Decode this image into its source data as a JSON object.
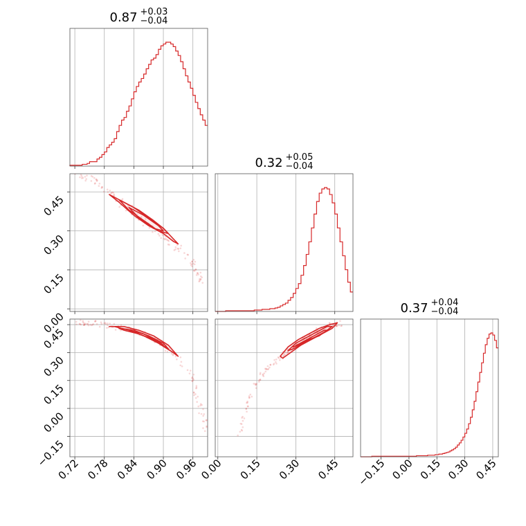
{
  "chart_data": {
    "type": "corner",
    "color": "#d62728",
    "parameters": [
      {
        "median": "0.87",
        "upper": "+0.03",
        "lower": "−0.04",
        "range": [
          0.71,
          0.99
        ],
        "ticks": [
          {
            "v": 0.72,
            "label": "0.72"
          },
          {
            "v": 0.78,
            "label": "0.78"
          },
          {
            "v": 0.84,
            "label": "0.84"
          },
          {
            "v": 0.9,
            "label": "0.90"
          },
          {
            "v": 0.96,
            "label": "0.96"
          }
        ]
      },
      {
        "median": "0.32",
        "upper": "+0.05",
        "lower": "−0.04",
        "range": [
          -0.01,
          0.52
        ],
        "ticks": [
          {
            "v": 0.0,
            "label": "0.00"
          },
          {
            "v": 0.15,
            "label": "0.15"
          },
          {
            "v": 0.3,
            "label": "0.30"
          },
          {
            "v": 0.45,
            "label": "0.45"
          }
        ]
      },
      {
        "median": "0.37",
        "upper": "+0.04",
        "lower": "−0.04",
        "range": [
          -0.26,
          0.48
        ],
        "ticks": [
          {
            "v": -0.15,
            "label": "−0.15"
          },
          {
            "v": 0.0,
            "label": "0.00"
          },
          {
            "v": 0.15,
            "label": "0.15"
          },
          {
            "v": 0.3,
            "label": "0.30"
          },
          {
            "v": 0.45,
            "label": "0.45"
          }
        ]
      }
    ],
    "histograms": [
      {
        "param": 0,
        "bins": [
          0.71,
          0.715,
          0.72,
          0.725,
          0.73,
          0.735,
          0.74,
          0.745,
          0.75,
          0.755,
          0.76,
          0.765,
          0.77,
          0.775,
          0.78,
          0.785,
          0.79,
          0.795,
          0.8,
          0.805,
          0.81,
          0.815,
          0.82,
          0.825,
          0.83,
          0.835,
          0.84,
          0.845,
          0.85,
          0.855,
          0.86,
          0.865,
          0.87,
          0.875,
          0.88,
          0.885,
          0.89,
          0.895,
          0.9,
          0.905,
          0.91,
          0.915,
          0.92,
          0.925,
          0.93,
          0.935,
          0.94,
          0.945,
          0.95,
          0.955,
          0.96,
          0.965,
          0.97,
          0.975,
          0.98,
          0.985
        ],
        "counts": [
          1,
          1,
          1,
          1,
          1,
          2,
          2,
          3,
          5,
          5,
          5,
          8,
          10,
          13,
          16,
          21,
          24,
          27,
          31,
          39,
          46,
          52,
          55,
          62,
          68,
          76,
          84,
          90,
          95,
          99,
          104,
          110,
          115,
          120,
          122,
          126,
          132,
          136,
          138,
          140,
          140,
          138,
          135,
          130,
          125,
          118,
          110,
          102,
          95,
          88,
          80,
          72,
          65,
          58,
          52,
          46
        ]
      },
      {
        "param": 1,
        "bins": [
          -0.01,
          0.0,
          0.01,
          0.02,
          0.03,
          0.04,
          0.05,
          0.06,
          0.07,
          0.08,
          0.09,
          0.1,
          0.11,
          0.12,
          0.13,
          0.14,
          0.15,
          0.16,
          0.17,
          0.18,
          0.19,
          0.2,
          0.21,
          0.22,
          0.23,
          0.24,
          0.25,
          0.26,
          0.27,
          0.28,
          0.29,
          0.3,
          0.31,
          0.32,
          0.33,
          0.34,
          0.35,
          0.36,
          0.37,
          0.38,
          0.39,
          0.4,
          0.41,
          0.42,
          0.43,
          0.44,
          0.45,
          0.46,
          0.47,
          0.48,
          0.49,
          0.5,
          0.51
        ],
        "counts": [
          0,
          0,
          0,
          0,
          1,
          1,
          1,
          1,
          1,
          1,
          1,
          1,
          1,
          1,
          1,
          2,
          2,
          2,
          3,
          3,
          3,
          4,
          4,
          5,
          6,
          8,
          10,
          12,
          16,
          20,
          26,
          33,
          40,
          52,
          66,
          82,
          100,
          120,
          140,
          158,
          170,
          176,
          178,
          176,
          168,
          156,
          140,
          120,
          100,
          80,
          60,
          42,
          28
        ]
      },
      {
        "param": 2,
        "bins": [
          -0.26,
          -0.25,
          -0.24,
          -0.23,
          -0.22,
          -0.21,
          -0.2,
          -0.19,
          -0.18,
          -0.17,
          -0.16,
          -0.15,
          -0.14,
          -0.13,
          -0.12,
          -0.11,
          -0.1,
          -0.09,
          -0.08,
          -0.07,
          -0.06,
          -0.05,
          -0.04,
          -0.03,
          -0.02,
          -0.01,
          0.0,
          0.01,
          0.02,
          0.03,
          0.04,
          0.05,
          0.06,
          0.07,
          0.08,
          0.09,
          0.1,
          0.11,
          0.12,
          0.13,
          0.14,
          0.15,
          0.16,
          0.17,
          0.18,
          0.19,
          0.2,
          0.21,
          0.22,
          0.23,
          0.24,
          0.25,
          0.26,
          0.27,
          0.28,
          0.29,
          0.3,
          0.31,
          0.32,
          0.33,
          0.34,
          0.35,
          0.36,
          0.37,
          0.38,
          0.39,
          0.4,
          0.41,
          0.42,
          0.43,
          0.44,
          0.45,
          0.46,
          0.47
        ],
        "counts": [
          0,
          0,
          0,
          0,
          0,
          0,
          1,
          1,
          1,
          1,
          1,
          1,
          1,
          1,
          1,
          1,
          1,
          1,
          1,
          1,
          1,
          1,
          1,
          1,
          1,
          1,
          1,
          1,
          1,
          1,
          2,
          2,
          2,
          2,
          2,
          2,
          3,
          3,
          3,
          3,
          4,
          4,
          5,
          5,
          6,
          7,
          8,
          9,
          11,
          13,
          15,
          18,
          22,
          26,
          31,
          37,
          44,
          52,
          62,
          74,
          88,
          104,
          122,
          140,
          158,
          176,
          194,
          210,
          222,
          230,
          232,
          228,
          218,
          204
        ]
      }
    ],
    "contours": [
      {
        "x_param": 0,
        "y_param": 1,
        "samples": {
          "x": [
            0.72,
            0.74,
            0.76,
            0.78,
            0.8,
            0.82,
            0.84,
            0.86,
            0.88,
            0.9,
            0.92,
            0.94,
            0.96,
            0.97,
            0.98
          ],
          "y": [
            0.52,
            0.51,
            0.49,
            0.46,
            0.43,
            0.4,
            0.37,
            0.34,
            0.31,
            0.28,
            0.25,
            0.22,
            0.18,
            0.14,
            0.1
          ]
        },
        "levels": [
          {
            "x": [
              0.79,
              0.82,
              0.85,
              0.88,
              0.9,
              0.92,
              0.93,
              0.92,
              0.9,
              0.87,
              0.84,
              0.81
            ],
            "y": [
              0.44,
              0.41,
              0.38,
              0.34,
              0.31,
              0.27,
              0.25,
              0.26,
              0.29,
              0.32,
              0.36,
              0.41
            ]
          },
          {
            "x": [
              0.81,
              0.84,
              0.87,
              0.9,
              0.91,
              0.89,
              0.86,
              0.83
            ],
            "y": [
              0.42,
              0.39,
              0.35,
              0.31,
              0.29,
              0.3,
              0.34,
              0.38
            ]
          },
          {
            "x": [
              0.83,
              0.86,
              0.89,
              0.9,
              0.88,
              0.85
            ],
            "y": [
              0.39,
              0.36,
              0.32,
              0.3,
              0.31,
              0.35
            ]
          }
        ]
      },
      {
        "x_param": 0,
        "y_param": 2,
        "samples": {
          "x": [
            0.72,
            0.74,
            0.76,
            0.78,
            0.8,
            0.82,
            0.84,
            0.86,
            0.88,
            0.9,
            0.92,
            0.94,
            0.96,
            0.97,
            0.98,
            0.99
          ],
          "y": [
            0.46,
            0.46,
            0.46,
            0.45,
            0.44,
            0.43,
            0.42,
            0.4,
            0.37,
            0.34,
            0.3,
            0.24,
            0.15,
            0.05,
            -0.05,
            -0.12
          ]
        },
        "levels": [
          {
            "x": [
              0.79,
              0.82,
              0.85,
              0.88,
              0.91,
              0.93,
              0.92,
              0.89,
              0.86,
              0.83,
              0.8
            ],
            "y": [
              0.44,
              0.44,
              0.42,
              0.39,
              0.34,
              0.28,
              0.3,
              0.35,
              0.39,
              0.42,
              0.44
            ]
          },
          {
            "x": [
              0.81,
              0.84,
              0.87,
              0.9,
              0.91,
              0.88,
              0.85,
              0.82
            ],
            "y": [
              0.43,
              0.42,
              0.39,
              0.35,
              0.32,
              0.37,
              0.4,
              0.42
            ]
          },
          {
            "x": [
              0.83,
              0.86,
              0.89,
              0.9,
              0.87,
              0.84
            ],
            "y": [
              0.42,
              0.4,
              0.36,
              0.34,
              0.38,
              0.41
            ]
          }
        ]
      },
      {
        "x_param": 1,
        "y_param": 2,
        "samples": {
          "x": [
            0.08,
            0.1,
            0.12,
            0.15,
            0.18,
            0.21,
            0.24,
            0.27,
            0.3,
            0.33,
            0.36,
            0.39,
            0.42,
            0.45,
            0.48
          ],
          "y": [
            -0.15,
            -0.05,
            0.05,
            0.14,
            0.2,
            0.24,
            0.27,
            0.31,
            0.34,
            0.37,
            0.4,
            0.42,
            0.44,
            0.45,
            0.46
          ]
        },
        "levels": [
          {
            "x": [
              0.24,
              0.27,
              0.31,
              0.35,
              0.39,
              0.43,
              0.46,
              0.44,
              0.4,
              0.36,
              0.32,
              0.28,
              0.25
            ],
            "y": [
              0.28,
              0.33,
              0.37,
              0.4,
              0.43,
              0.45,
              0.46,
              0.43,
              0.4,
              0.37,
              0.34,
              0.3,
              0.27
            ]
          },
          {
            "x": [
              0.27,
              0.3,
              0.34,
              0.38,
              0.42,
              0.44,
              0.41,
              0.37,
              0.33,
              0.29
            ],
            "y": [
              0.31,
              0.35,
              0.38,
              0.41,
              0.44,
              0.44,
              0.41,
              0.38,
              0.35,
              0.32
            ]
          },
          {
            "x": [
              0.29,
              0.33,
              0.37,
              0.41,
              0.42,
              0.39,
              0.35,
              0.31
            ],
            "y": [
              0.33,
              0.36,
              0.39,
              0.42,
              0.42,
              0.39,
              0.37,
              0.34
            ]
          }
        ]
      }
    ],
    "grid": true
  }
}
